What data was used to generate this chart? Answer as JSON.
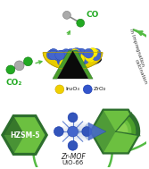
{
  "bg_color": "#ffffff",
  "figsize": [
    1.67,
    1.89
  ],
  "dpi": 100,
  "catalyst_label_in2o3": "In₂O₃",
  "catalyst_label_zro2": "ZrO₂",
  "co2_label": "CO₂",
  "co_label": "CO",
  "arrow_text_line1": "In Impregnation",
  "arrow_text_line2": "calcination",
  "hzsm5_label": "HZSM-5",
  "mof_label": "Zr-MOF",
  "uio66_label": "UiO-66",
  "green_dark": "#2d6e2d",
  "green_mid": "#4a9e2a",
  "green_light": "#6cc040",
  "green_bright": "#88d050",
  "yellow_dot": "#f0d000",
  "blue_dot": "#3355bb",
  "dark_layer": "#111111",
  "mol_green": "#22aa22",
  "arrow_color": "#55bb44",
  "text_color": "#222222"
}
